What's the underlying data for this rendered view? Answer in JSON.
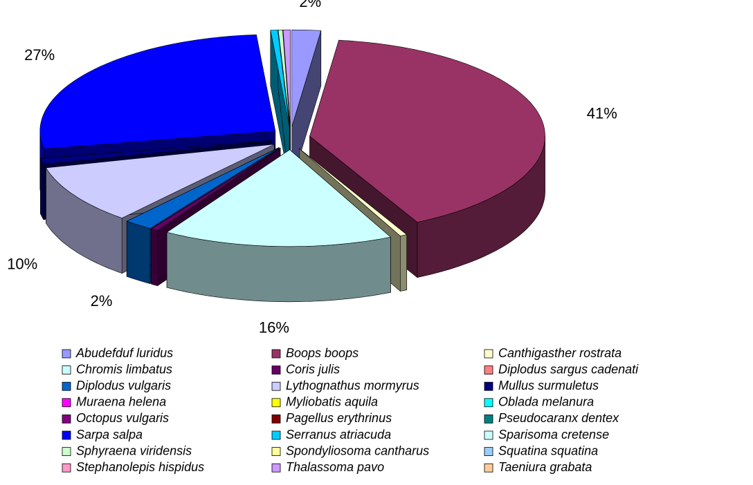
{
  "chart_data": {
    "type": "pie",
    "categories": [
      "Abudefduf luridus",
      "Boops boops",
      "Canthigasther rostrata",
      "Chromis limbatus",
      "Coris julis",
      "Diplodus sargus cadenati",
      "Diplodus vulgaris",
      "Lythognathus mormyrus",
      "Mullus surmuletus",
      "Muraena helena",
      "Myliobatis aquila",
      "Oblada melanura",
      "Octopus vulgaris",
      "Pagellus erythrinus",
      "Pseudocaranx dentex",
      "Sarpa salpa",
      "Serranus atriacuda",
      "Sparisoma cretense",
      "Sphyraena viridensis",
      "Spondyliosoma cantharus",
      "Squatina squatina",
      "Stephanolepis hispidus",
      "Thalassoma pavo",
      "Taeniura grabata"
    ],
    "values": [
      2,
      41,
      0.5,
      16,
      0.5,
      0,
      2,
      10,
      1,
      0,
      0,
      0,
      0,
      0,
      0,
      27,
      0.5,
      0,
      0.3,
      0,
      0,
      0,
      0.5,
      0
    ],
    "value_labels": [
      "2%",
      "41%",
      null,
      "16%",
      null,
      null,
      "2%",
      "10%",
      "1%",
      null,
      null,
      null,
      null,
      null,
      null,
      "27%",
      null,
      null,
      null,
      null,
      null,
      null,
      null,
      null
    ],
    "colors": [
      "#9999ff",
      "#993366",
      "#ffffcc",
      "#ccffff",
      "#660066",
      "#ff8080",
      "#0066cc",
      "#ccccff",
      "#000080",
      "#ff00ff",
      "#ffff00",
      "#00ffff",
      "#800080",
      "#800000",
      "#008080",
      "#0000ff",
      "#00ccff",
      "#ccffff",
      "#ccffcc",
      "#ffff99",
      "#99ccff",
      "#ff99cc",
      "#cc99ff",
      "#ffcc99"
    ],
    "legend": "bottom"
  }
}
